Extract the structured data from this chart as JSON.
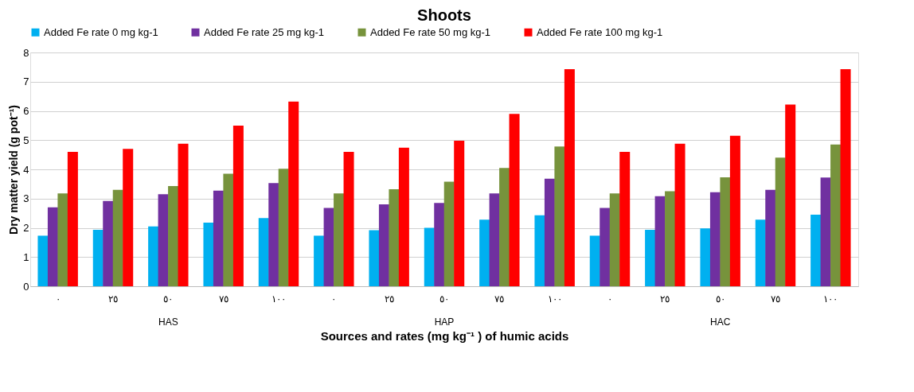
{
  "chart_data": {
    "type": "bar",
    "title": "Shoots",
    "xlabel": "Sources and rates (mg kg⁻¹ ) of humic acids",
    "ylabel": "Dry matter yield (g pot⁻¹)",
    "categories": [
      "٠",
      "٢٥",
      "٥٠",
      "٧٥",
      "١٠٠",
      "٠",
      "٢٥",
      "٥٠",
      "٧٥",
      "١٠٠",
      "٠",
      "٢٥",
      "٥٠",
      "٧٥",
      "١٠٠"
    ],
    "annotations": [
      "HAS",
      "HAP",
      "HAC"
    ],
    "series": [
      {
        "name": "Added Fe rate 0 mg kg-1",
        "color": "#00b0f0",
        "values": [
          1.73,
          1.93,
          2.05,
          2.18,
          2.33,
          1.73,
          1.92,
          2.0,
          2.28,
          2.43,
          1.73,
          1.93,
          1.98,
          2.28,
          2.45
        ]
      },
      {
        "name": "Added Fe rate 25 mg kg-1",
        "color": "#7030a0",
        "values": [
          2.7,
          2.92,
          3.15,
          3.27,
          3.53,
          2.68,
          2.8,
          2.85,
          3.18,
          3.68,
          2.68,
          3.08,
          3.22,
          3.3,
          3.72
        ]
      },
      {
        "name": "Added Fe rate 50 mg kg-1",
        "color": "#77933c",
        "values": [
          3.18,
          3.3,
          3.43,
          3.85,
          4.02,
          3.18,
          3.32,
          3.58,
          4.05,
          4.78,
          3.18,
          3.25,
          3.73,
          4.4,
          4.85
        ]
      },
      {
        "name": "Added Fe rate 100 mg kg-1",
        "color": "#ff0000",
        "values": [
          4.6,
          4.7,
          4.88,
          5.5,
          6.32,
          4.6,
          4.74,
          4.98,
          5.9,
          7.43,
          4.6,
          4.88,
          5.15,
          6.22,
          7.43
        ]
      }
    ],
    "ylim": [
      0,
      8
    ],
    "yticks": [
      0,
      1,
      2,
      3,
      4,
      5,
      6,
      7,
      8
    ],
    "grid": "y",
    "legend": "top"
  }
}
